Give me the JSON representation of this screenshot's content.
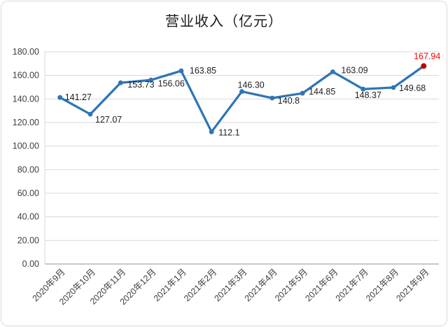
{
  "chart": {
    "title": "营业收入（亿元）"
  },
  "chart_data": {
    "type": "line",
    "title": "营业收入（亿元）",
    "categories": [
      "2020年9月",
      "2020年10月",
      "2020年11月",
      "2020年12月",
      "2021年1月",
      "2021年2月",
      "2021年3月",
      "2021年4月",
      "2021年5月",
      "2021年6月",
      "2021年7月",
      "2021年8月",
      "2021年9月"
    ],
    "values": [
      141.27,
      127.07,
      153.73,
      156.06,
      163.85,
      112.1,
      146.3,
      140.8,
      144.85,
      163.09,
      148.37,
      149.68,
      167.94
    ],
    "value_labels": [
      "141.27",
      "127.07",
      "153.73",
      "156.06",
      "163.85",
      "112.1",
      "146.30",
      "140.8",
      "144.85",
      "163.09",
      "148.37",
      "149.68",
      "167.94"
    ],
    "ylim": [
      0,
      180
    ],
    "ytick_step": 20,
    "ytick_labels": [
      "0.00",
      "20.00",
      "40.00",
      "60.00",
      "80.00",
      "100.00",
      "120.00",
      "140.00",
      "160.00",
      "180.00"
    ],
    "grid": true,
    "legend": "none",
    "line_color": "#2e75b6",
    "marker_color": "#2e75b6",
    "highlight_marker_color": "#c00000",
    "highlight_label_color": "#ff0000",
    "grid_color": "#d9d9d9",
    "axis_color": "#a6a6a6",
    "label_color": "#1f1f1f",
    "tick_color": "#3f3f3f"
  }
}
